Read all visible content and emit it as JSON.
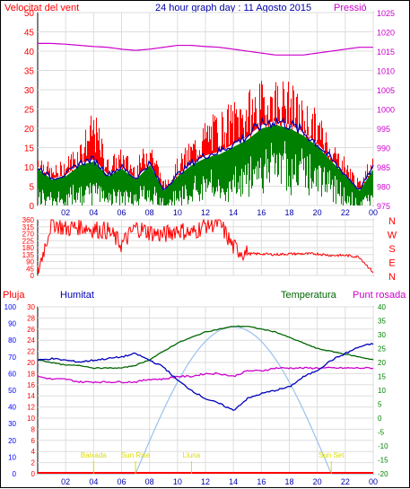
{
  "colors": {
    "wind": "#ff0000",
    "gust_avg": "#0000aa",
    "wind_low": "#008000",
    "pressure": "#cc00cc",
    "humidity": "#0000bb",
    "temperature": "#006600",
    "dewpoint": "#cc00cc",
    "rain": "#ff0000",
    "solar": "#9cc0ee",
    "solar_label": "#dddd00",
    "title": "#0000aa",
    "axis_left": "#ff0000",
    "axis_left2": "#0000ff",
    "axis_right2": "#008000",
    "axis_right_top": "#cc00cc"
  },
  "chart_data": [
    {
      "type": "line",
      "title": "24 hour graph day : 11 Agosto 2015",
      "left_label": "Velocitat del vent",
      "right_label": "Pressió",
      "x_ticks": [
        "02",
        "04",
        "06",
        "08",
        "10",
        "12",
        "14",
        "16",
        "18",
        "20",
        "22",
        "00"
      ],
      "y_left_ticks": [
        "0",
        "5",
        "10",
        "15",
        "20",
        "25",
        "30",
        "35",
        "40",
        "45",
        "50"
      ],
      "y_right_ticks": [
        "975",
        "980",
        "985",
        "990",
        "995",
        "1000",
        "1005",
        "1010",
        "1015",
        "1020",
        "1025"
      ],
      "ylim_left": [
        0,
        50
      ],
      "ylim_right": [
        975,
        1025
      ],
      "x_hours": [
        0,
        1,
        2,
        3,
        4,
        5,
        6,
        7,
        8,
        9,
        10,
        11,
        12,
        13,
        14,
        15,
        16,
        17,
        18,
        19,
        20,
        21,
        22,
        23,
        24
      ],
      "series": [
        {
          "key": "wind_high",
          "values": [
            12,
            8,
            10,
            14,
            20,
            10,
            12,
            9,
            15,
            5,
            10,
            14,
            18,
            20,
            22,
            24,
            26,
            27,
            26,
            22,
            20,
            14,
            10,
            5,
            12
          ]
        },
        {
          "key": "wind_avg",
          "values": [
            10,
            7,
            8,
            11,
            12,
            8,
            10,
            7,
            11,
            4,
            8,
            11,
            13,
            14,
            16,
            18,
            21,
            22,
            21,
            19,
            16,
            12,
            8,
            4,
            10
          ]
        },
        {
          "key": "wind_low",
          "values": [
            6,
            4,
            5,
            7,
            8,
            5,
            6,
            4,
            7,
            2,
            5,
            7,
            9,
            8,
            10,
            13,
            15,
            16,
            15,
            14,
            12,
            9,
            5,
            2,
            6
          ]
        },
        {
          "key": "pressure",
          "values": [
            1017,
            1017,
            1016.8,
            1016.5,
            1016.2,
            1016,
            1015.5,
            1015.2,
            1015.5,
            1016,
            1016.5,
            1016.5,
            1016.2,
            1016,
            1015.5,
            1015,
            1014.5,
            1014,
            1014,
            1014,
            1014.5,
            1015,
            1015.5,
            1016,
            1016
          ]
        }
      ]
    },
    {
      "type": "line",
      "title": "",
      "y_left_ticks": [
        "0",
        "45",
        "90",
        "135",
        "180",
        "225",
        "270",
        "315",
        "360"
      ],
      "ylim": [
        0,
        360
      ],
      "compass": [
        "N",
        "W",
        "S",
        "E",
        "N"
      ],
      "x_hours": [
        0,
        1,
        2,
        3,
        4,
        5,
        6,
        7,
        8,
        9,
        10,
        11,
        12,
        13,
        14,
        15,
        16,
        17,
        18,
        19,
        20,
        21,
        22,
        23,
        24
      ],
      "series": [
        {
          "key": "direction",
          "values": [
            20,
            350,
            300,
            320,
            300,
            290,
            200,
            310,
            280,
            260,
            300,
            270,
            330,
            340,
            180,
            140,
            140,
            135,
            140,
            140,
            140,
            130,
            130,
            120,
            20
          ]
        }
      ]
    },
    {
      "type": "line",
      "labels": {
        "rain": "Pluja",
        "humidity": "Humitat",
        "temperature": "Temperatura",
        "dewpoint": "Punt rosada"
      },
      "y_rain_ticks": [
        "0",
        "2",
        "4",
        "6",
        "8",
        "10",
        "12",
        "14",
        "16",
        "18",
        "20",
        "22",
        "24",
        "26",
        "28",
        "30"
      ],
      "y_hum_ticks": [
        "0",
        "10",
        "20",
        "30",
        "40",
        "50",
        "60",
        "70",
        "80",
        "90",
        "100"
      ],
      "y_temp_ticks": [
        "-20",
        "-15",
        "-10",
        "-5",
        "0",
        "5",
        "10",
        "15",
        "20",
        "25",
        "30",
        "35",
        "40"
      ],
      "ylim_rain": [
        0,
        30
      ],
      "ylim_humidity": [
        0,
        100
      ],
      "ylim_temp": [
        -20,
        40
      ],
      "solar_events": [
        {
          "label": "Baixada",
          "hour": 4
        },
        {
          "label": "Sun Rise",
          "hour": 7
        },
        {
          "label": "Lluna",
          "hour": 11
        },
        {
          "label": "Sun Set",
          "hour": 21
        }
      ],
      "x_hours": [
        0,
        1,
        2,
        3,
        4,
        5,
        6,
        7,
        8,
        9,
        10,
        11,
        12,
        13,
        14,
        15,
        16,
        17,
        18,
        19,
        20,
        21,
        22,
        23,
        24
      ],
      "series": [
        {
          "key": "humidity",
          "values": [
            68,
            69,
            68,
            67,
            68,
            69,
            70,
            72,
            68,
            64,
            56,
            50,
            45,
            42,
            38,
            45,
            48,
            50,
            52,
            58,
            62,
            68,
            72,
            76,
            78
          ]
        },
        {
          "key": "temperature",
          "values": [
            21,
            20,
            19,
            19,
            18,
            18,
            18,
            19,
            21,
            24,
            27,
            29,
            31,
            32,
            33,
            33,
            32,
            31,
            29,
            27,
            25,
            24,
            23,
            22,
            21
          ]
        },
        {
          "key": "dewpoint",
          "values": [
            15,
            14,
            14,
            13,
            13,
            13,
            13,
            13,
            14,
            14,
            15,
            15,
            16,
            16,
            15,
            17,
            17,
            18,
            18,
            18,
            18,
            18,
            18,
            18,
            18
          ]
        },
        {
          "key": "rain",
          "values": [
            0,
            0,
            0,
            0,
            0,
            0,
            0,
            0,
            0,
            0,
            0,
            0,
            0,
            0,
            0,
            0,
            0,
            0,
            0,
            0,
            0,
            0,
            0,
            0,
            0
          ]
        },
        {
          "key": "solar",
          "values": [
            0,
            0,
            0,
            0,
            0,
            0,
            0,
            0,
            15,
            35,
            55,
            72,
            82,
            87,
            88,
            84,
            72,
            55,
            35,
            15,
            0,
            0,
            0,
            0,
            0
          ]
        }
      ]
    }
  ]
}
